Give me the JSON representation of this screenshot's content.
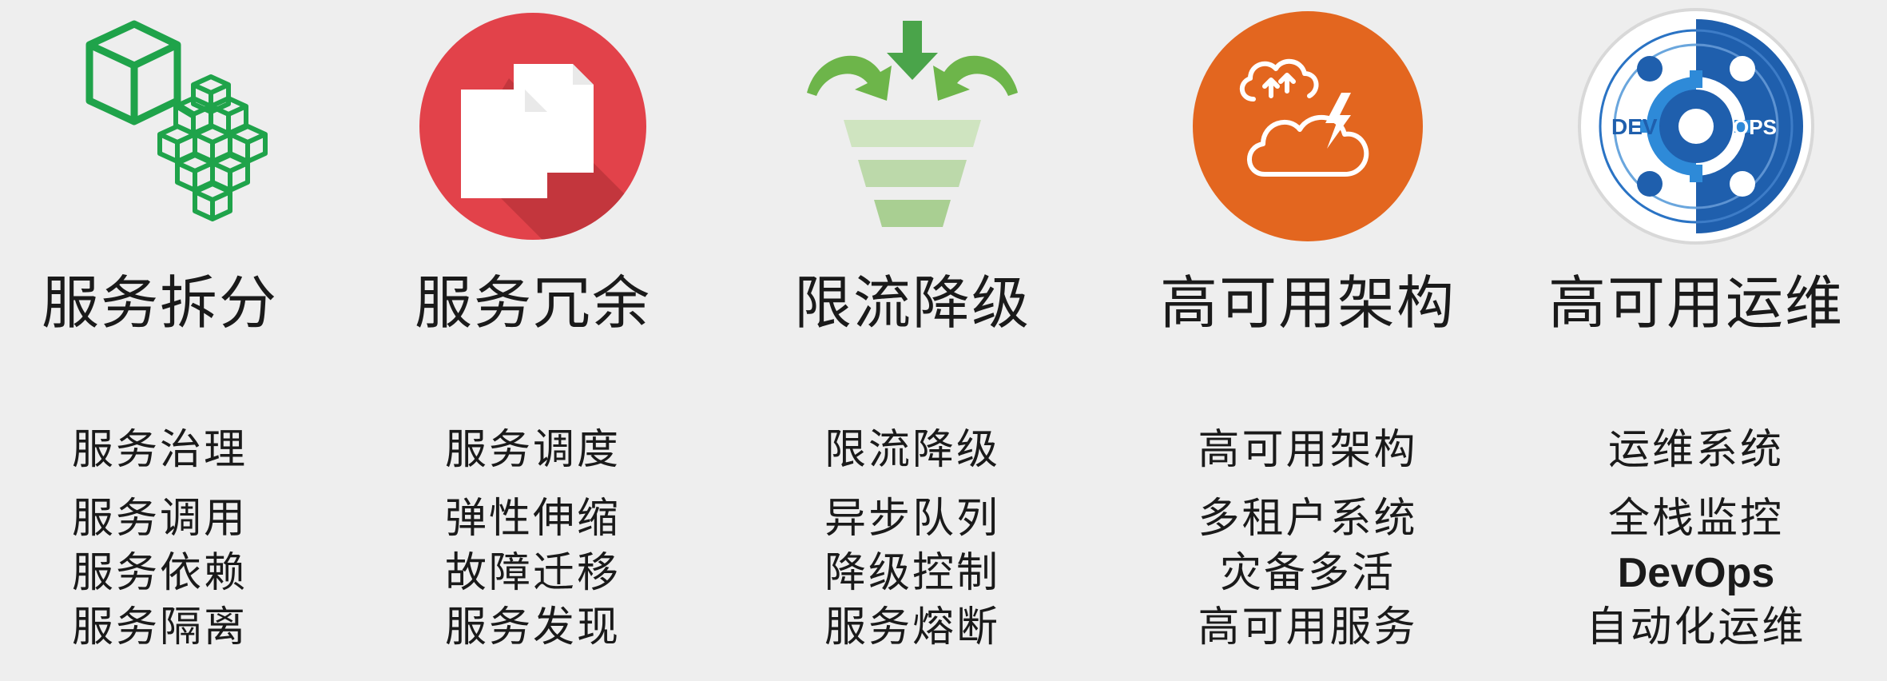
{
  "columns": [
    {
      "id": "split",
      "icon": "cubes-split-icon",
      "title": "服务拆分",
      "subtitle": "服务治理",
      "items": [
        "服务调用",
        "服务依赖",
        "服务隔离"
      ]
    },
    {
      "id": "redundancy",
      "icon": "documents-icon",
      "title": "服务冗余",
      "subtitle": "服务调度",
      "items": [
        "弹性伸缩",
        "故障迁移",
        "服务发现"
      ]
    },
    {
      "id": "limit",
      "icon": "funnel-icon",
      "title": "限流降级",
      "subtitle": "限流降级",
      "items": [
        "异步队列",
        "降级控制",
        "服务熔断"
      ]
    },
    {
      "id": "ha-arch",
      "icon": "cloud-lightning-icon",
      "title": "高可用架构",
      "subtitle": "高可用架构",
      "items": [
        "多租户系统",
        "灾备多活",
        "高可用服务"
      ]
    },
    {
      "id": "ha-ops",
      "icon": "devops-icon",
      "title": "高可用运维",
      "subtitle": "运维系统",
      "items": [
        "全栈监控",
        "DevOps",
        "自动化运维"
      ],
      "icon_text": {
        "left": "DEV",
        "right": "OPS"
      }
    }
  ],
  "colors": {
    "green": "#1fa34a",
    "red": "#e2424a",
    "light_green": "#8cc06a",
    "orange": "#e3661f",
    "blue": "#1f5fad"
  }
}
